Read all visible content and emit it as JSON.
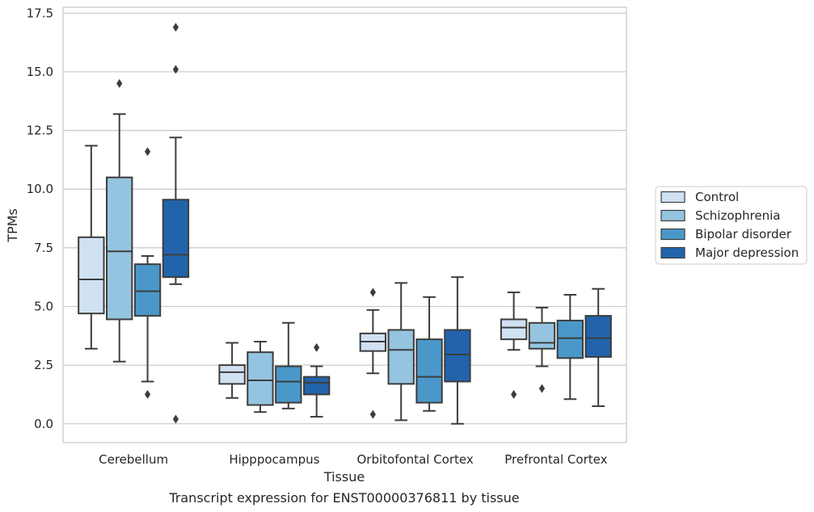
{
  "chart_data": {
    "type": "box",
    "xlabel": "Tissue",
    "ylabel": "TPMs",
    "caption": "Transcript expression for ENST00000376811 by tissue",
    "ylim": [
      -0.8,
      17.75
    ],
    "yticks": [
      0.0,
      2.5,
      5.0,
      7.5,
      10.0,
      12.5,
      15.0,
      17.5
    ],
    "ytick_labels": [
      "0.0",
      "2.5",
      "5.0",
      "7.5",
      "10.0",
      "12.5",
      "15.0",
      "17.5"
    ],
    "grid": "horizontal",
    "legend_position": "right",
    "categories": [
      "Cerebellum",
      "Hipppocampus",
      "Orbitofontal Cortex",
      "Prefrontal Cortex"
    ],
    "series": [
      {
        "name": "Control",
        "color": "#d0e1f2",
        "boxes": [
          {
            "whislo": 3.2,
            "q1": 4.7,
            "med": 6.15,
            "q3": 7.95,
            "whishi": 11.85,
            "fliers": []
          },
          {
            "whislo": 1.1,
            "q1": 1.7,
            "med": 2.2,
            "q3": 2.5,
            "whishi": 3.45,
            "fliers": []
          },
          {
            "whislo": 2.15,
            "q1": 3.1,
            "med": 3.5,
            "q3": 3.85,
            "whishi": 4.85,
            "fliers": [
              5.6,
              0.4
            ]
          },
          {
            "whislo": 3.15,
            "q1": 3.6,
            "med": 4.1,
            "q3": 4.45,
            "whishi": 5.6,
            "fliers": [
              1.25
            ]
          }
        ]
      },
      {
        "name": "Schizophrenia",
        "color": "#94c4df",
        "boxes": [
          {
            "whislo": 2.65,
            "q1": 4.45,
            "med": 7.35,
            "q3": 10.5,
            "whishi": 13.2,
            "fliers": [
              14.5
            ]
          },
          {
            "whislo": 0.5,
            "q1": 0.8,
            "med": 1.85,
            "q3": 3.05,
            "whishi": 3.5,
            "fliers": []
          },
          {
            "whislo": 0.15,
            "q1": 1.7,
            "med": 3.15,
            "q3": 4.0,
            "whishi": 6.0,
            "fliers": []
          },
          {
            "whislo": 2.45,
            "q1": 3.2,
            "med": 3.45,
            "q3": 4.3,
            "whishi": 4.95,
            "fliers": [
              1.5
            ]
          }
        ]
      },
      {
        "name": "Bipolar disorder",
        "color": "#4a98c9",
        "boxes": [
          {
            "whislo": 1.8,
            "q1": 4.6,
            "med": 5.65,
            "q3": 6.8,
            "whishi": 7.15,
            "fliers": [
              11.6,
              1.25
            ]
          },
          {
            "whislo": 0.65,
            "q1": 0.9,
            "med": 1.8,
            "q3": 2.45,
            "whishi": 4.3,
            "fliers": []
          },
          {
            "whislo": 0.55,
            "q1": 0.9,
            "med": 2.0,
            "q3": 3.6,
            "whishi": 5.4,
            "fliers": []
          },
          {
            "whislo": 1.05,
            "q1": 2.8,
            "med": 3.65,
            "q3": 4.4,
            "whishi": 5.5,
            "fliers": []
          }
        ]
      },
      {
        "name": "Major depression",
        "color": "#2164ab",
        "boxes": [
          {
            "whislo": 5.95,
            "q1": 6.25,
            "med": 7.2,
            "q3": 9.55,
            "whishi": 12.2,
            "fliers": [
              16.9,
              15.1,
              0.2
            ]
          },
          {
            "whislo": 0.3,
            "q1": 1.25,
            "med": 1.75,
            "q3": 2.0,
            "whishi": 2.45,
            "fliers": [
              3.25
            ]
          },
          {
            "whislo": 0.0,
            "q1": 1.8,
            "med": 2.95,
            "q3": 4.0,
            "whishi": 6.25,
            "fliers": []
          },
          {
            "whislo": 0.75,
            "q1": 2.85,
            "med": 3.65,
            "q3": 4.6,
            "whishi": 5.75,
            "fliers": []
          }
        ]
      }
    ]
  }
}
